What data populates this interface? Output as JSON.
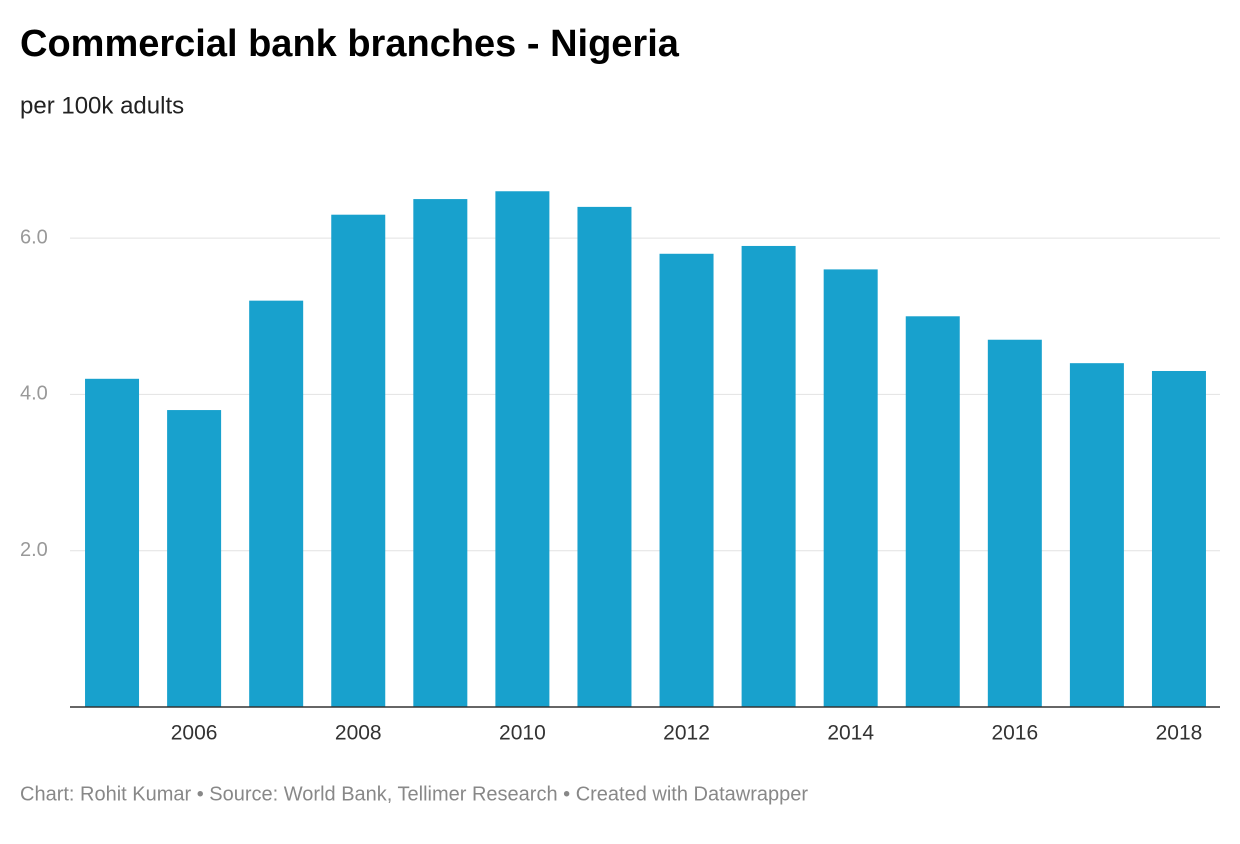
{
  "chart_data": {
    "type": "bar",
    "title": "Commercial bank branches - Nigeria",
    "subtitle": "per 100k adults",
    "categories": [
      null,
      "2006",
      null,
      "2008",
      null,
      "2010",
      null,
      "2012",
      null,
      "2014",
      null,
      "2016",
      null,
      "2018"
    ],
    "values": [
      4.2,
      3.8,
      5.2,
      6.3,
      6.5,
      6.6,
      6.4,
      5.8,
      5.9,
      5.6,
      5.0,
      4.7,
      4.4,
      4.3
    ],
    "color": "#18a1cd",
    "ylim": [
      0,
      7
    ],
    "yticks": [
      {
        "value": 2,
        "label": "2.0"
      },
      {
        "value": 4,
        "label": "4.0"
      },
      {
        "value": 6,
        "label": "6.0"
      }
    ],
    "grid": true,
    "footer": "Chart: Rohit Kumar • Source: World Bank, Tellimer Research • Created with Datawrapper"
  }
}
